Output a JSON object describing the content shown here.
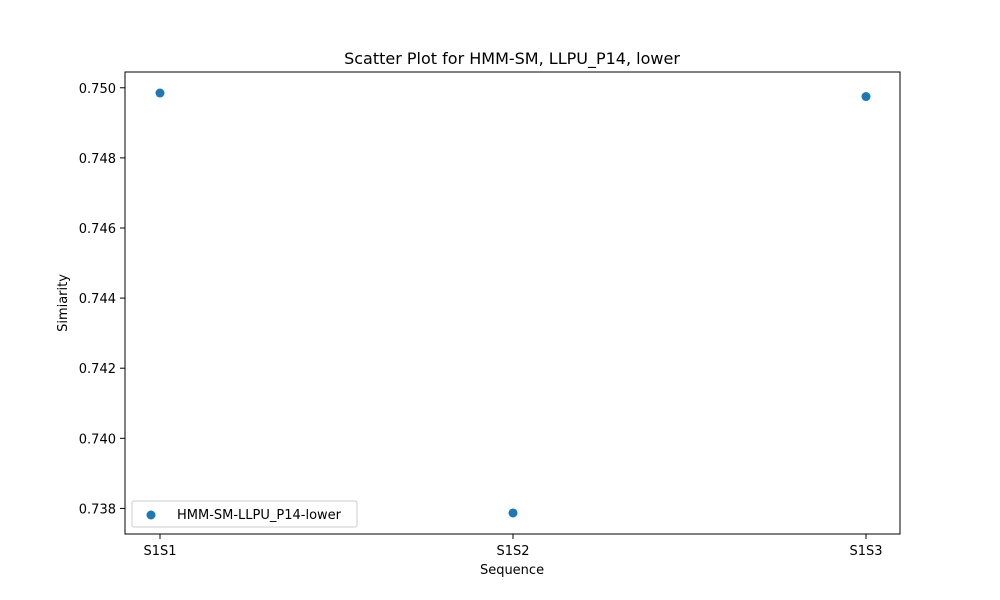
{
  "chart_data": {
    "type": "scatter",
    "title": "Scatter Plot for HMM-SM, LLPU_P14, lower",
    "xlabel": "Sequence",
    "ylabel": "Simiarity",
    "categories": [
      "S1S1",
      "S1S2",
      "S1S3"
    ],
    "series": [
      {
        "name": "HMM-SM-LLPU_P14-lower",
        "color": "#1f77b4",
        "values": [
          0.74985,
          0.73787,
          0.74975
        ]
      }
    ],
    "ylim": [
      0.73727,
      0.75045
    ],
    "yticks": [
      0.738,
      0.74,
      0.742,
      0.744,
      0.746,
      0.748,
      0.75
    ],
    "ytick_labels": [
      "0.738",
      "0.740",
      "0.742",
      "0.744",
      "0.746",
      "0.748",
      "0.750"
    ],
    "grid": false,
    "legend_position": "lower-left"
  }
}
